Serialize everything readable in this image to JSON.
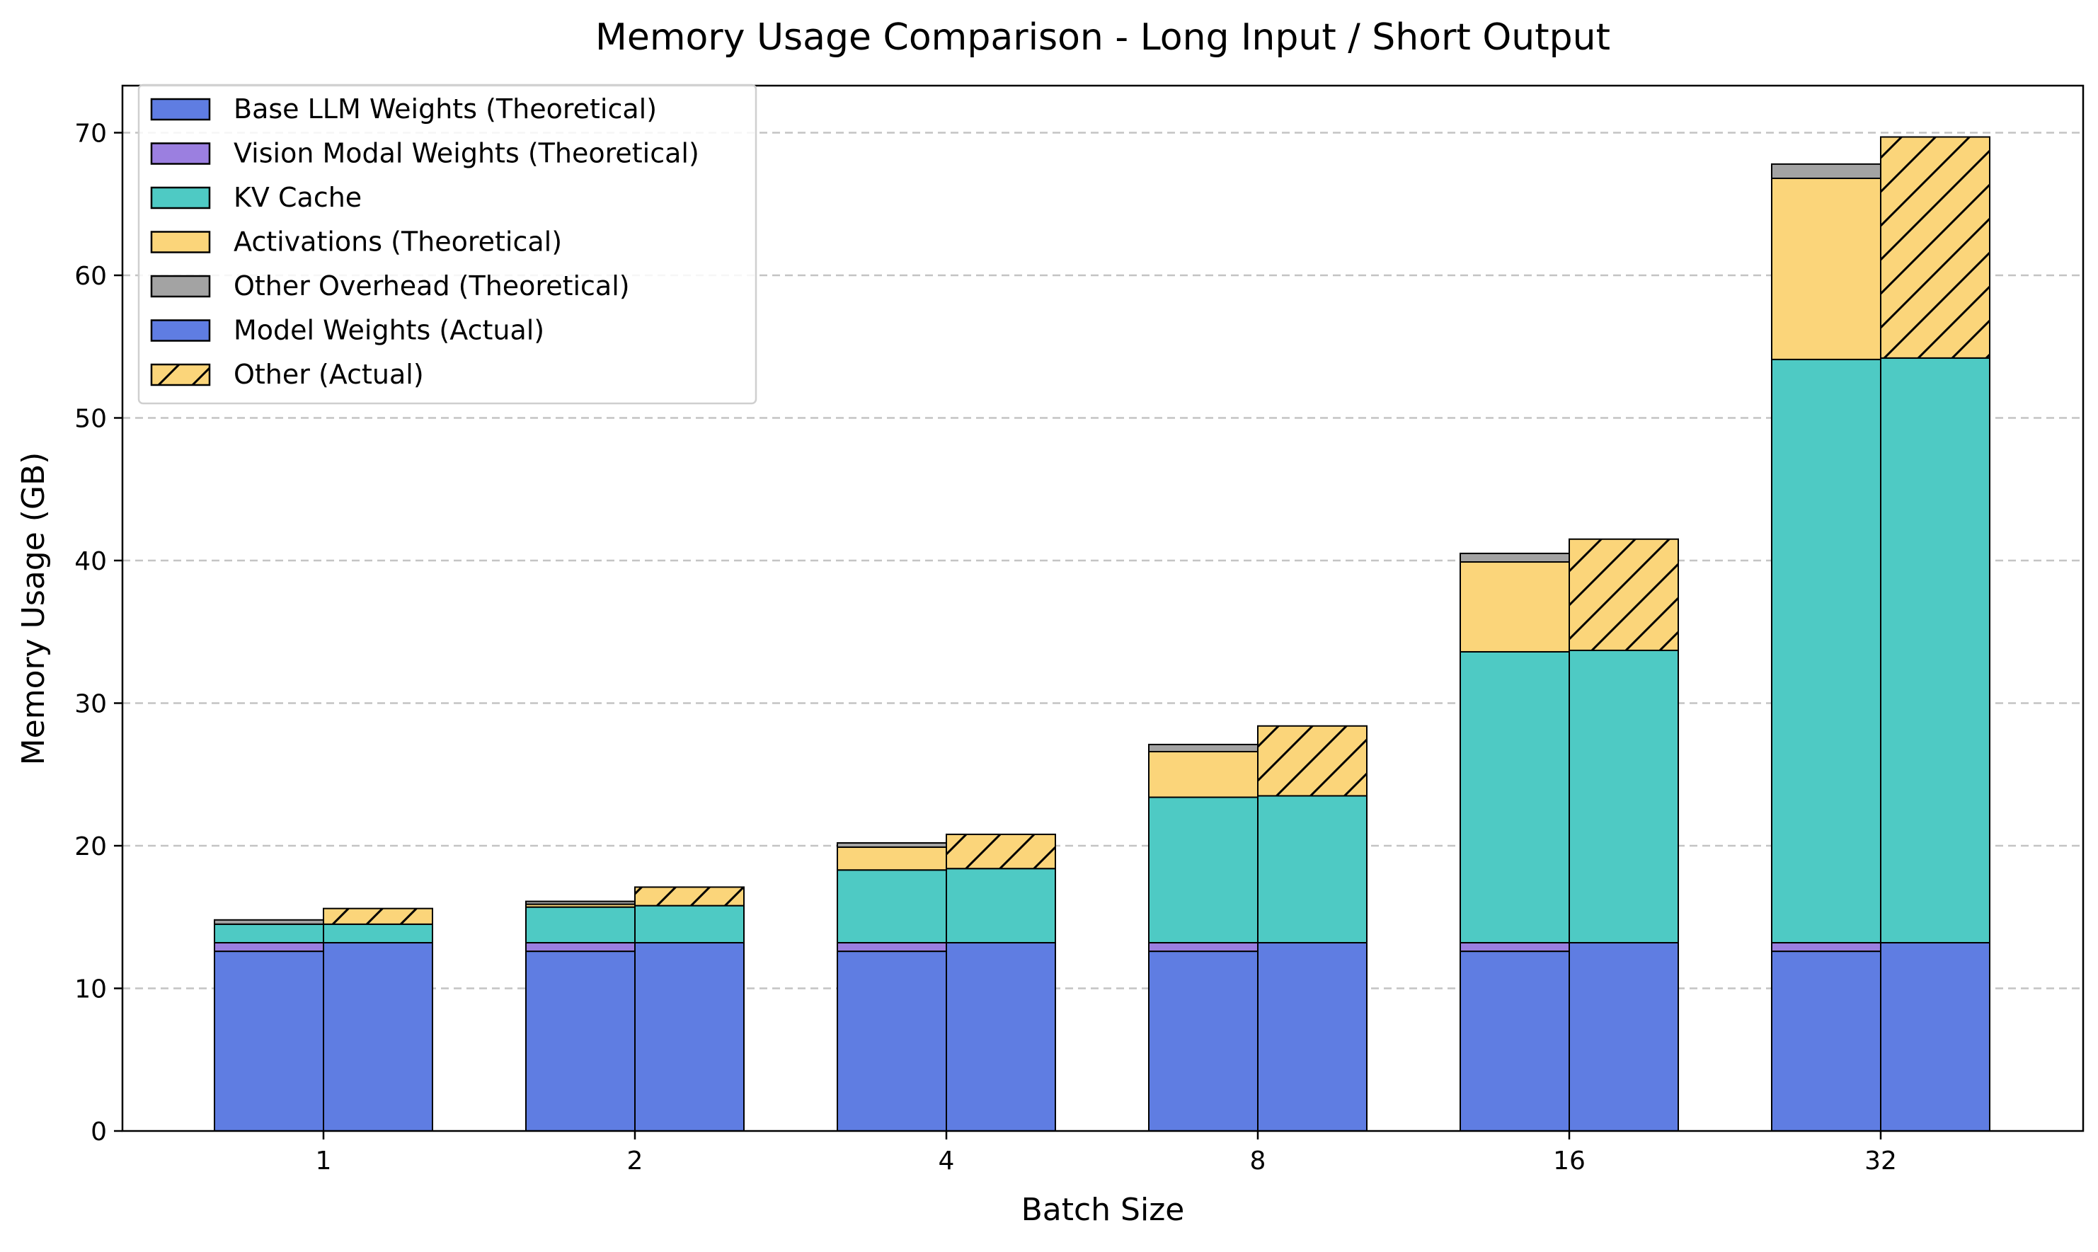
{
  "chart_data": {
    "type": "bar",
    "title": "Memory Usage Comparison - Long Input / Short Output",
    "xlabel": "Batch Size",
    "ylabel": "Memory Usage (GB)",
    "categories": [
      "1",
      "2",
      "4",
      "8",
      "16",
      "32"
    ],
    "ylim": [
      0,
      73.3
    ],
    "yticks": [
      0,
      10,
      20,
      30,
      40,
      50,
      60,
      70
    ],
    "grid": "y-dashed",
    "legend_position": "top-left",
    "stacked_groups": [
      {
        "group": "Theoretical",
        "series": [
          {
            "name": "Base LLM Weights (Theoretical)",
            "color": "#5f7de2",
            "hatch": false,
            "values": [
              12.6,
              12.6,
              12.6,
              12.6,
              12.6,
              12.6
            ]
          },
          {
            "name": "Vision Modal Weights (Theoretical)",
            "color": "#9b7fe0",
            "hatch": false,
            "values": [
              0.6,
              0.6,
              0.6,
              0.6,
              0.6,
              0.6
            ]
          },
          {
            "name": "KV Cache",
            "color": "#4ecac4",
            "hatch": false,
            "values": [
              1.3,
              2.5,
              5.1,
              10.2,
              20.4,
              40.9
            ]
          },
          {
            "name": "Activations (Theoretical)",
            "color": "#fbd57a",
            "hatch": false,
            "values": [
              0.0,
              0.2,
              1.6,
              3.2,
              6.3,
              12.7
            ]
          },
          {
            "name": "Other Overhead (Theoretical)",
            "color": "#a3a3a3",
            "hatch": false,
            "values": [
              0.3,
              0.2,
              0.3,
              0.5,
              0.6,
              1.0
            ]
          }
        ]
      },
      {
        "group": "Actual",
        "series": [
          {
            "name": "Model Weights (Actual)",
            "color": "#5f7de2",
            "hatch": false,
            "values": [
              13.2,
              13.2,
              13.2,
              13.2,
              13.2,
              13.2
            ]
          },
          {
            "name": "KV Cache",
            "color": "#4ecac4",
            "hatch": false,
            "legend": false,
            "values": [
              1.3,
              2.6,
              5.2,
              10.3,
              20.5,
              41.0
            ]
          },
          {
            "name": "Other (Actual)",
            "color": "#fbd57a",
            "hatch": true,
            "values": [
              1.1,
              1.3,
              2.4,
              4.9,
              7.8,
              15.5
            ]
          }
        ]
      }
    ],
    "legend": [
      {
        "label": "Base LLM Weights (Theoretical)",
        "color": "#5f7de2",
        "hatch": false
      },
      {
        "label": "Vision Modal Weights (Theoretical)",
        "color": "#9b7fe0",
        "hatch": false
      },
      {
        "label": "KV Cache",
        "color": "#4ecac4",
        "hatch": false
      },
      {
        "label": "Activations (Theoretical)",
        "color": "#fbd57a",
        "hatch": false
      },
      {
        "label": "Other Overhead (Theoretical)",
        "color": "#a3a3a3",
        "hatch": false
      },
      {
        "label": "Model Weights (Actual)",
        "color": "#5f7de2",
        "hatch": false
      },
      {
        "label": "Other (Actual)",
        "color": "#fbd57a",
        "hatch": true
      }
    ]
  }
}
